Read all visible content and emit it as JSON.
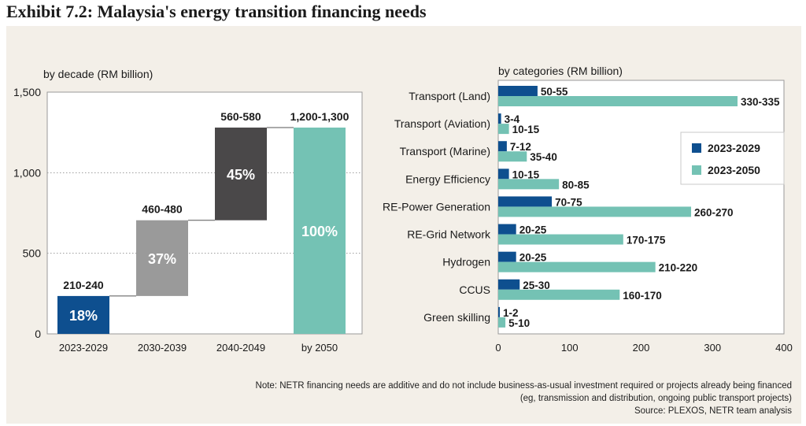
{
  "page": {
    "title": "Exhibit 7.2: Malaysia's energy transition financing needs"
  },
  "colors": {
    "panel_bg": "#f3efe8",
    "navy": "#0e4f8f",
    "teal": "#74c2b4",
    "grey": "#9a9a9a",
    "dark_grey": "#4a4849"
  },
  "chart_data": [
    {
      "type": "bar",
      "subtype": "waterfall",
      "subtitle": "by decade (RM billion)",
      "categories": [
        "2023-2029",
        "2030-2039",
        "2040-2049",
        "by 2050"
      ],
      "ranges": [
        [
          210,
          240
        ],
        [
          460,
          480
        ],
        [
          560,
          580
        ],
        [
          1200,
          1300
        ]
      ],
      "range_labels": [
        "210-240",
        "460-480",
        "560-580",
        "1,200-1,300"
      ],
      "bar_start": [
        0,
        235,
        705,
        0
      ],
      "bar_end": [
        235,
        705,
        1280,
        1280
      ],
      "share_labels": [
        "18%",
        "37%",
        "45%",
        "100%"
      ],
      "bar_colors": [
        "#0e4f8f",
        "#9a9a9a",
        "#4a4849",
        "#74c2b4"
      ],
      "ylim": [
        0,
        1500
      ],
      "yticks": [
        0,
        500,
        1000,
        1500
      ],
      "ytick_labels": [
        "0",
        "500",
        "1,000",
        "1,500"
      ],
      "grid": true
    },
    {
      "type": "bar",
      "orientation": "horizontal",
      "subtitle": "by categories (RM billion)",
      "categories": [
        "Transport (Land)",
        "Transport (Aviation)",
        "Transport (Marine)",
        "Energy Efficiency",
        "RE-Power Generation",
        "RE-Grid Network",
        "Hydrogen",
        "CCUS",
        "Green skilling"
      ],
      "series": [
        {
          "name": "2023-2029",
          "color": "#0e4f8f",
          "values": [
            55,
            4,
            12,
            15,
            75,
            25,
            25,
            30,
            2
          ],
          "labels": [
            "50-55",
            "3-4",
            "7-12",
            "10-15",
            "70-75",
            "20-25",
            "20-25",
            "25-30",
            "1-2"
          ]
        },
        {
          "name": "2023-2050",
          "color": "#74c2b4",
          "values": [
            335,
            15,
            40,
            85,
            270,
            175,
            220,
            170,
            10
          ],
          "labels": [
            "330-335",
            "10-15",
            "35-40",
            "80-85",
            "260-270",
            "170-175",
            "210-220",
            "160-170",
            "5-10"
          ]
        }
      ],
      "xlim": [
        0,
        400
      ],
      "xticks": [
        0,
        100,
        200,
        300,
        400
      ],
      "legend": "right"
    }
  ],
  "note": {
    "lines": [
      "Note: NETR financing needs are additive and do not include business-as-usual investment required or projects already being financed",
      "(eg, transmission and distribution, ongoing public transport projects)",
      "Source: PLEXOS, NETR team analysis"
    ]
  }
}
